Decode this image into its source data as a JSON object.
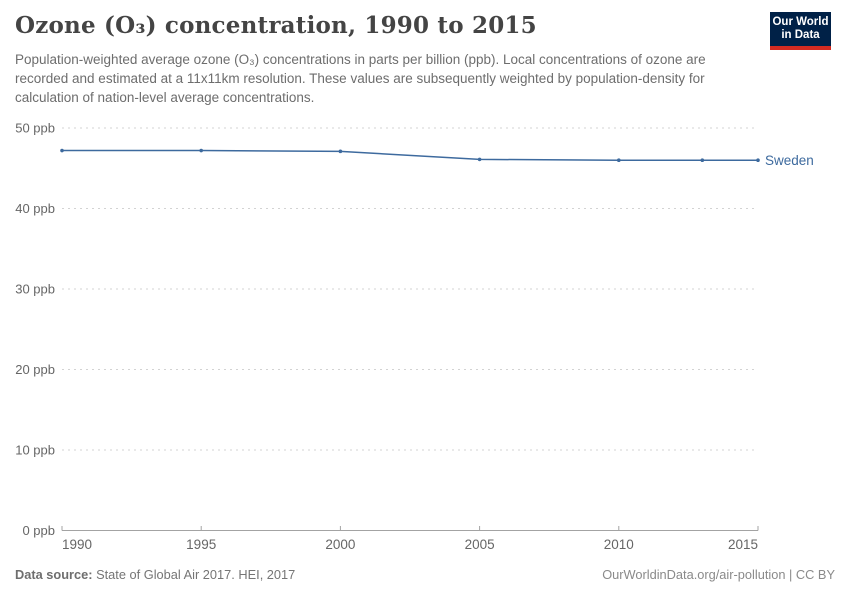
{
  "header": {
    "title": "Ozone (O₃) concentration, 1990 to 2015",
    "subtitle": "Population-weighted average ozone (O₃) concentrations in parts per billion (ppb). Local concentrations of ozone are recorded and estimated at a 11x11km resolution. These values are subsequently weighted by population-density for calculation of nation-level average concentrations.",
    "logo": {
      "line1": "Our World",
      "line2": "in Data",
      "bg_color": "#002147",
      "accent_color": "#d42b21"
    }
  },
  "footer": {
    "source_label": "Data source:",
    "source_text": " State of Global Air 2017. HEI, 2017",
    "right_text": "OurWorldinData.org/air-pollution | CC BY"
  },
  "chart_data": {
    "type": "line",
    "title": "Ozone (O₃) concentration, 1990 to 2015",
    "x": [
      1990,
      1995,
      2000,
      2005,
      2010,
      2013,
      2015
    ],
    "series": [
      {
        "name": "Sweden",
        "color": "#3d6a9e",
        "values": [
          47.2,
          47.2,
          47.1,
          46.1,
          46.0,
          46.0,
          46.0
        ]
      }
    ],
    "xlabel": "",
    "ylabel": "",
    "ytick_suffix": " ppb",
    "yticks": [
      0,
      10,
      20,
      30,
      40,
      50
    ],
    "xticks": [
      1990,
      1995,
      2000,
      2005,
      2010,
      2015
    ],
    "xlim": [
      1990,
      2015
    ],
    "ylim": [
      0,
      50
    ],
    "grid": "horizontal-dashed",
    "grid_color": "#d3d3d3",
    "axis_color": "#a3a3a3",
    "tick_label_color": "#666666",
    "legend": "end-of-line-label"
  }
}
